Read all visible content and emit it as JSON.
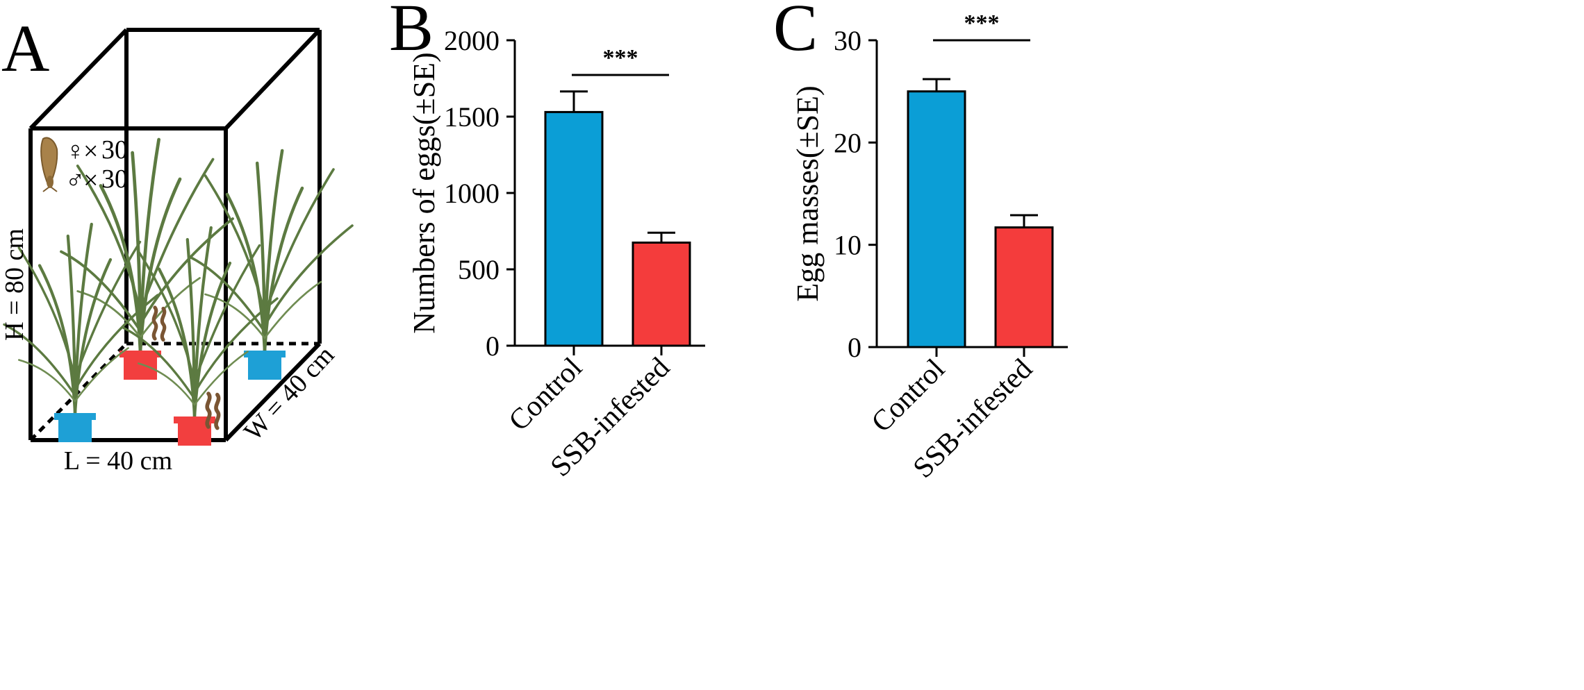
{
  "panel_a": {
    "letter": "A",
    "height_label": "H = 80 cm",
    "length_label": "L = 40 cm",
    "width_label": "W = 40  cm",
    "female_symbol": "♀",
    "male_symbol": "♂",
    "times_symbol": "×",
    "female_count": "30",
    "male_count": "30",
    "colors": {
      "control_pot": "#1ea0d6",
      "infested_pot": "#f23f3f",
      "plant": "#5c7a41",
      "larva": "#7a5533"
    }
  },
  "chart_data": [
    {
      "type": "bar",
      "panel": "B",
      "categories": [
        "Control",
        "SSB-infested"
      ],
      "values": [
        1530,
        675
      ],
      "errors": [
        135,
        65
      ],
      "colors": [
        "#0b9ed6",
        "#f43c3c"
      ],
      "ylabel": "Numbers of eggs(±SE)",
      "ylim": [
        0,
        2000
      ],
      "yticks": [
        "0",
        "500",
        "1000",
        "1500",
        "2000"
      ],
      "significance": "***",
      "grid": false
    },
    {
      "type": "bar",
      "panel": "C",
      "categories": [
        "Control",
        "SSB-infested"
      ],
      "values": [
        25,
        11.7
      ],
      "errors": [
        1.2,
        1.2
      ],
      "colors": [
        "#0b9ed6",
        "#f43c3c"
      ],
      "ylabel": "Egg masses(±SE)",
      "ylim": [
        0,
        30
      ],
      "yticks": [
        "0",
        "10",
        "20",
        "30"
      ],
      "significance": "***",
      "grid": false
    }
  ]
}
